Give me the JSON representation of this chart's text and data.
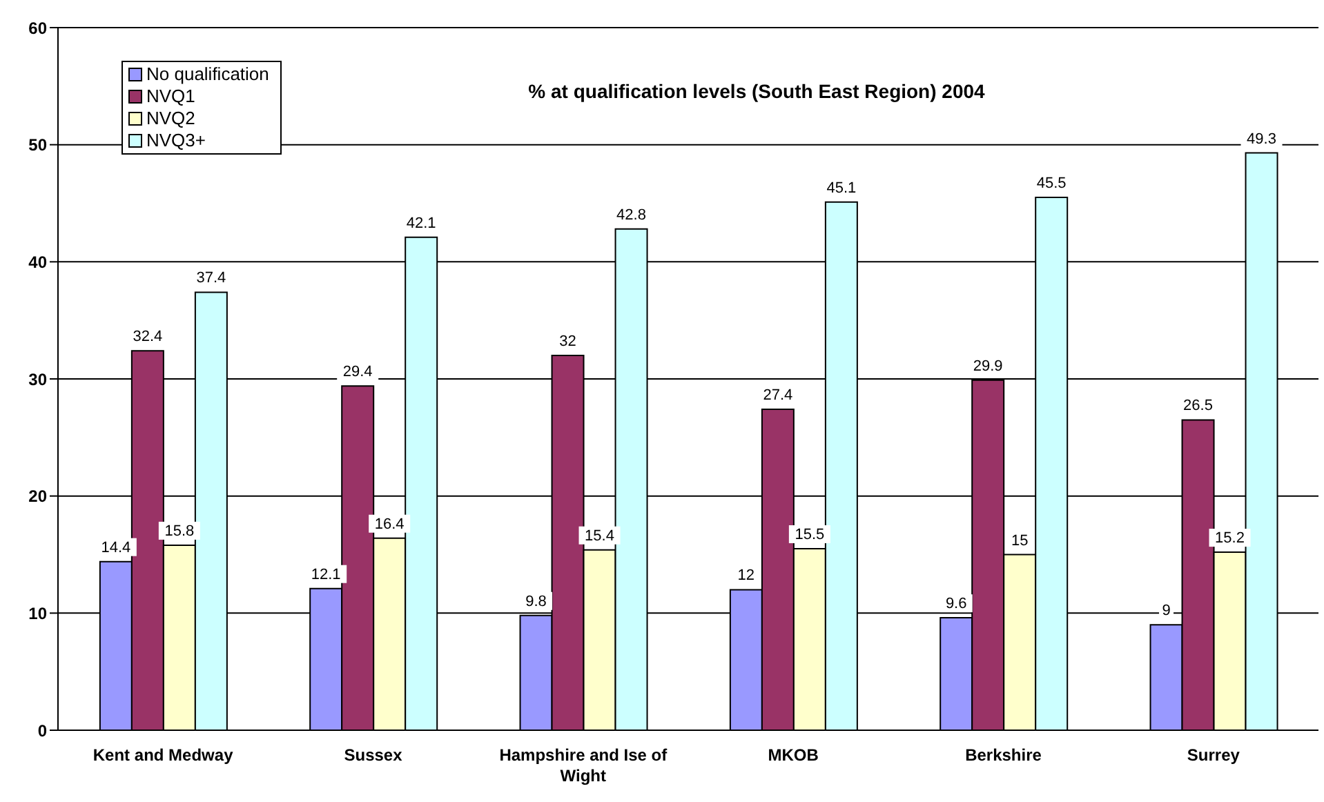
{
  "chart_data": {
    "type": "bar",
    "title": "% at qualification levels (South East Region) 2004",
    "categories": [
      "Kent and Medway",
      "Sussex",
      "Hampshire and Ise of Wight",
      "MKOB",
      "Berkshire",
      "Surrey"
    ],
    "series": [
      {
        "name": "No qualification",
        "color": "#9999ff",
        "values": [
          14.4,
          12.1,
          9.8,
          12,
          9.6,
          9
        ]
      },
      {
        "name": "NVQ1",
        "color": "#993366",
        "values": [
          32.4,
          29.4,
          32,
          27.4,
          29.9,
          26.5
        ]
      },
      {
        "name": "NVQ2",
        "color": "#ffffcc",
        "values": [
          15.8,
          16.4,
          15.4,
          15.5,
          15,
          15.2
        ]
      },
      {
        "name": "NVQ3+",
        "color": "#ccffff",
        "values": [
          37.4,
          42.1,
          42.8,
          45.1,
          45.5,
          49.3
        ]
      }
    ],
    "ylim": [
      0,
      60
    ],
    "yticks": [
      0,
      10,
      20,
      30,
      40,
      50,
      60
    ],
    "grid": "y",
    "legend": "top left",
    "data_labels": true
  }
}
